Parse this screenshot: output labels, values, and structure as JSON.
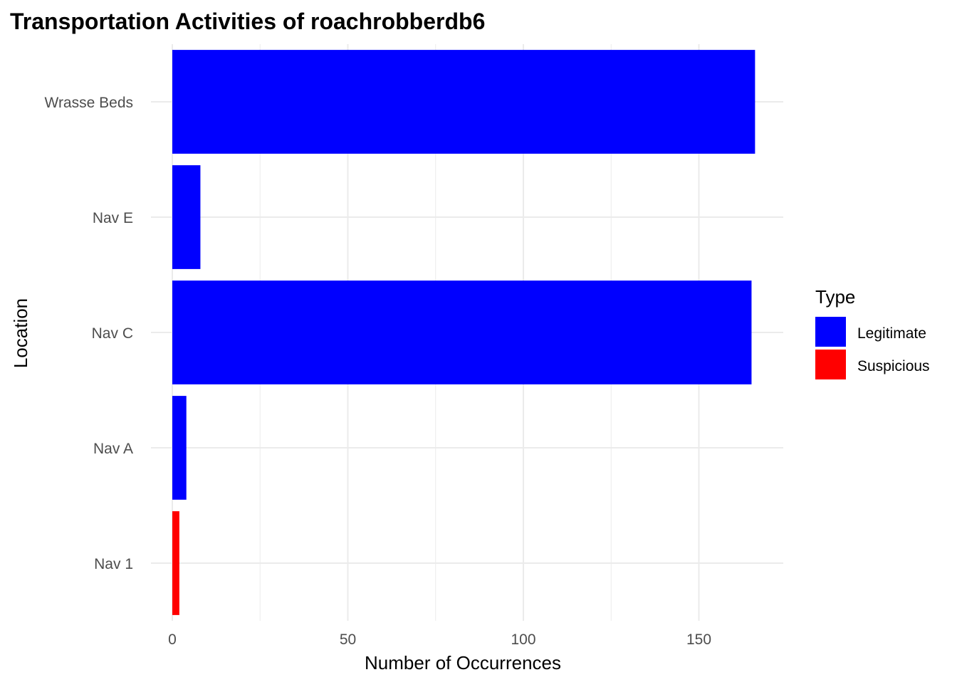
{
  "chart_data": {
    "type": "bar",
    "orientation": "horizontal",
    "title": "Transportation Activities of roachrobberdb6",
    "xlabel": "Number of Occurrences",
    "ylabel": "Location",
    "categories": [
      "Wrasse Beds",
      "Nav E",
      "Nav C",
      "Nav A",
      "Nav 1"
    ],
    "values": [
      166,
      8,
      165,
      4,
      2
    ],
    "types": [
      "Legitimate",
      "Legitimate",
      "Legitimate",
      "Legitimate",
      "Suspicious"
    ],
    "xlim": [
      0,
      175
    ],
    "xticks": [
      0,
      50,
      100,
      150
    ],
    "grid": true,
    "legend": {
      "title": "Type",
      "position": "right",
      "entries": [
        {
          "label": "Legitimate",
          "color": "#0000ff"
        },
        {
          "label": "Suspicious",
          "color": "#ff0000"
        }
      ]
    }
  }
}
